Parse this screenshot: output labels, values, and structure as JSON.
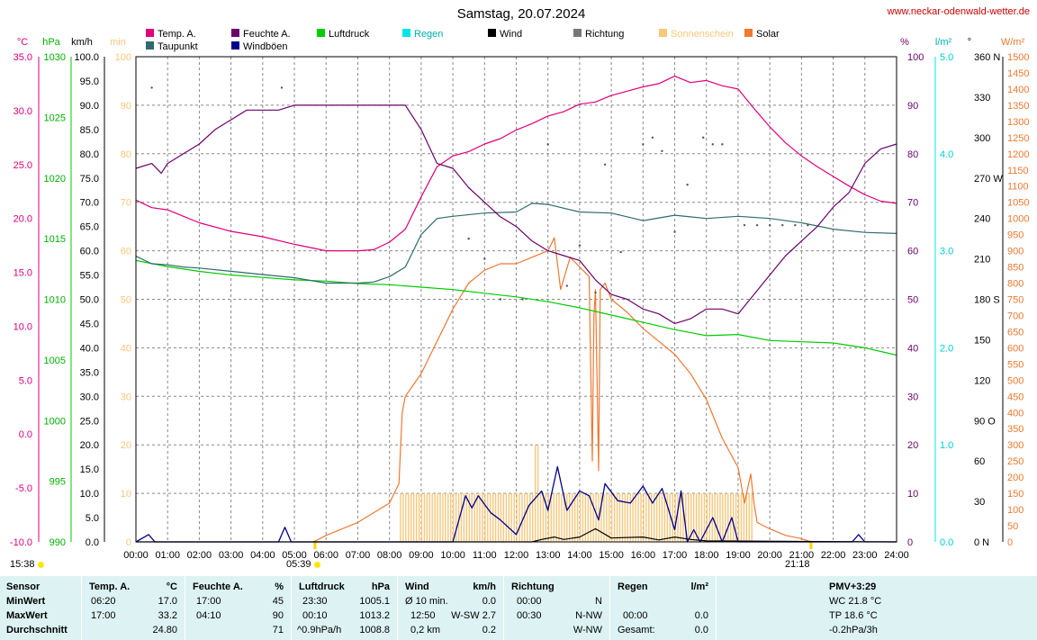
{
  "header": {
    "title": "Samstag, 20.07.2024",
    "source_url": "www.neckar-odenwald-wetter.de"
  },
  "legend": [
    {
      "label": "Temp. A.",
      "color": "#e0007a"
    },
    {
      "label": "Taupunkt",
      "color": "#2f6b6b"
    },
    {
      "label": "Feuchte A.",
      "color": "#6b006b"
    },
    {
      "label": "Windböen",
      "color": "#00008b"
    },
    {
      "label": "Luftdruck",
      "color": "#00cc00"
    },
    {
      "label": "Regen",
      "color": "#00e5e5"
    },
    {
      "label": "Wind",
      "color": "#000000"
    },
    {
      "label": "Richtung",
      "color": "#777777"
    },
    {
      "label": "Sonnenschein",
      "color": "#f7c77a"
    },
    {
      "label": "Solar",
      "color": "#f07830"
    }
  ],
  "axes": {
    "left_units": [
      "°C",
      "hPa",
      "km/h",
      "min"
    ],
    "right_units": [
      "%",
      "l/m²",
      "°",
      "W/m²"
    ],
    "temp_ticks": [
      "35.0",
      "30.0",
      "25.0",
      "20.0",
      "15.0",
      "10.0",
      "5.0",
      "0.0",
      "-5.0",
      "-10.0"
    ],
    "pressure_ticks": [
      "1030",
      "1025",
      "1020",
      "1015",
      "1010",
      "1005",
      "1000",
      "995",
      "990"
    ],
    "kmh_ticks": [
      "100.0",
      "95.0",
      "90.0",
      "85.0",
      "80.0",
      "75.0",
      "70.0",
      "65.0",
      "60.0",
      "55.0",
      "50.0",
      "45.0",
      "40.0",
      "35.0",
      "30.0",
      "25.0",
      "20.0",
      "15.0",
      "10.0",
      "5.0",
      "0.0"
    ],
    "min_ticks": [
      "100",
      "90",
      "80",
      "70",
      "60",
      "50",
      "40",
      "30",
      "20",
      "10",
      "0"
    ],
    "pct_ticks": [
      "100",
      "90",
      "80",
      "70",
      "60",
      "50",
      "40",
      "30",
      "20",
      "10",
      "0"
    ],
    "rain_ticks": [
      "5.0",
      "4.0",
      "3.0",
      "2.0",
      "1.0",
      "0.0"
    ],
    "dir_ticks": [
      "360 N",
      "330",
      "300",
      "270 W",
      "240",
      "210",
      "180 S",
      "150",
      "120",
      "90 O",
      "60",
      "30",
      "0 N"
    ],
    "solar_ticks": [
      "1500",
      "1450",
      "1400",
      "1350",
      "1300",
      "1250",
      "1200",
      "1150",
      "1100",
      "1050",
      "1000",
      "950",
      "900",
      "850",
      "800",
      "750",
      "700",
      "650",
      "600",
      "550",
      "500",
      "450",
      "400",
      "350",
      "300",
      "250",
      "200",
      "150",
      "100",
      "50",
      "0"
    ],
    "time_ticks": [
      "00:00",
      "01:00",
      "02:00",
      "03:00",
      "04:00",
      "05:00",
      "06:00",
      "07:00",
      "08:00",
      "09:00",
      "10:00",
      "11:00",
      "12:00",
      "13:00",
      "14:00",
      "15:00",
      "16:00",
      "17:00",
      "18:00",
      "19:00",
      "20:00",
      "21:00",
      "22:00",
      "23:00",
      "24:00"
    ],
    "sunrise_label": "05:39",
    "sunset_label": "21:18",
    "start_label": "15:38"
  },
  "chart_data": {
    "type": "line",
    "x_unit": "hour",
    "xlim": [
      0,
      24
    ],
    "series": [
      {
        "name": "Temp. A.",
        "unit": "°C",
        "ylim": [
          -10,
          35
        ],
        "x": [
          0,
          0.5,
          1,
          1.5,
          2,
          3,
          4,
          5,
          6,
          7,
          7.5,
          8,
          8.5,
          9,
          9.5,
          10,
          10.5,
          11,
          11.5,
          12,
          12.5,
          13,
          13.5,
          14,
          14.5,
          15,
          15.5,
          16,
          16.5,
          17,
          17.5,
          18,
          18.5,
          19,
          19.5,
          20,
          20.5,
          21,
          21.5,
          22,
          22.5,
          23,
          23.5,
          24
        ],
        "values": [
          21.7,
          21.0,
          20.8,
          20.2,
          19.6,
          18.8,
          18.3,
          17.6,
          17.0,
          17.0,
          17.1,
          17.8,
          19.0,
          22.0,
          24.8,
          25.8,
          26.2,
          26.9,
          27.4,
          28.2,
          28.8,
          29.5,
          29.9,
          30.6,
          30.8,
          31.4,
          31.8,
          32.2,
          32.5,
          33.2,
          32.6,
          32.8,
          32.3,
          32.0,
          30.2,
          28.5,
          27.0,
          25.8,
          24.8,
          23.9,
          23.0,
          22.2,
          21.6,
          21.4
        ]
      },
      {
        "name": "Taupunkt",
        "unit": "°C",
        "ylim": [
          -10,
          35
        ],
        "x": [
          0,
          0.5,
          1,
          1.5,
          2,
          3,
          4,
          5,
          6,
          7,
          7.5,
          8,
          8.5,
          9,
          9.5,
          10,
          11,
          12,
          12.5,
          13,
          14,
          15,
          16,
          17,
          18,
          19,
          20,
          21,
          22,
          23,
          24
        ],
        "values": [
          16.5,
          15.8,
          15.7,
          15.5,
          15.4,
          15.1,
          14.8,
          14.5,
          14.0,
          14.0,
          14.1,
          14.6,
          15.5,
          18.5,
          20.0,
          20.2,
          20.5,
          20.6,
          21.4,
          21.3,
          20.6,
          20.5,
          19.8,
          20.3,
          20.0,
          20.2,
          20.0,
          19.6,
          19.0,
          18.7,
          18.6
        ]
      },
      {
        "name": "Feuchte A.",
        "unit": "%",
        "ylim": [
          0,
          100
        ],
        "x": [
          0,
          0.5,
          0.8,
          1,
          1.5,
          2,
          2.5,
          3,
          3.5,
          4,
          4.5,
          5,
          6,
          7,
          8,
          8.5,
          9,
          9.5,
          10,
          10.5,
          11,
          11.5,
          12,
          12.5,
          13,
          13.5,
          14,
          14.5,
          15,
          15.5,
          16,
          16.5,
          17,
          17.5,
          18,
          18.5,
          19,
          19.5,
          20,
          20.5,
          21,
          21.5,
          22,
          22.5,
          23,
          23.5,
          24
        ],
        "values": [
          77,
          78,
          76,
          78,
          80,
          82,
          85,
          87,
          89,
          89,
          89,
          90,
          90,
          90,
          90,
          90,
          85,
          78,
          77,
          73,
          70,
          67,
          65,
          62,
          60,
          59,
          58,
          54,
          51,
          50,
          48,
          47,
          45,
          46,
          48,
          48,
          47,
          51,
          55,
          59,
          62,
          65,
          69,
          72,
          78,
          81,
          82
        ]
      },
      {
        "name": "Luftdruck",
        "unit": "hPa",
        "ylim": [
          990,
          1030
        ],
        "x": [
          0,
          1,
          2,
          3,
          4,
          5,
          6,
          7,
          8,
          9,
          10,
          11,
          12,
          13,
          14,
          15,
          16,
          17,
          18,
          19,
          20,
          21,
          22,
          23,
          24
        ],
        "values": [
          1013.2,
          1012.7,
          1012.3,
          1012.0,
          1011.8,
          1011.6,
          1011.5,
          1011.3,
          1011.2,
          1011.0,
          1010.8,
          1010.5,
          1010.2,
          1009.8,
          1009.3,
          1008.7,
          1008.1,
          1007.5,
          1007.0,
          1007.1,
          1006.6,
          1006.5,
          1006.4,
          1006.0,
          1005.4
        ]
      },
      {
        "name": "Windböen",
        "unit": "km/h",
        "ylim": [
          0,
          100
        ],
        "x": [
          0,
          0.4,
          0.6,
          4.5,
          4.7,
          4.9,
          10,
          10.4,
          10.6,
          10.8,
          11.2,
          11.5,
          12,
          12.4,
          12.8,
          13.0,
          13.3,
          13.6,
          14,
          14.3,
          14.6,
          14.8,
          15.2,
          15.6,
          16,
          16.3,
          16.6,
          17.0,
          17.2,
          17.4,
          17.6,
          17.8,
          18.2,
          18.5,
          18.8,
          19.0,
          22.6,
          22.8,
          23.0,
          24
        ],
        "values": [
          0,
          1.5,
          0,
          0,
          3,
          0,
          0,
          9.5,
          7,
          9.5,
          6,
          4.5,
          1.5,
          7.5,
          10.5,
          6.5,
          15.5,
          6.5,
          10.5,
          9.5,
          4.5,
          12,
          8.5,
          8,
          11.5,
          8,
          11,
          2.5,
          10.5,
          0,
          2.5,
          0,
          5,
          0,
          5,
          0,
          0,
          1.5,
          0,
          0
        ]
      },
      {
        "name": "Wind",
        "unit": "km/h",
        "ylim": [
          0,
          100
        ],
        "x": [
          0,
          12.5,
          12.8,
          13.2,
          13.5,
          14,
          14.5,
          15,
          16,
          16.5,
          17,
          17.5,
          18,
          24
        ],
        "values": [
          0,
          0,
          0.5,
          1.0,
          0.5,
          1.0,
          2.7,
          0.8,
          1.0,
          0.4,
          1.0,
          0.5,
          0.2,
          0
        ]
      },
      {
        "name": "Solar",
        "unit": "W/m²",
        "ylim": [
          0,
          1500
        ],
        "x": [
          5.6,
          6,
          7,
          8,
          8.3,
          8.4,
          8.5,
          9,
          9.5,
          10,
          10.5,
          11,
          11.5,
          12,
          12.5,
          13,
          13.2,
          13.4,
          13.7,
          14,
          14.3,
          14.4,
          14.45,
          14.5,
          14.6,
          14.65,
          14.8,
          15,
          15.5,
          16,
          16.5,
          17,
          17.5,
          18,
          18.5,
          19,
          19.2,
          19.4,
          19.5,
          19.6,
          20,
          20.5,
          21,
          21.3
        ],
        "values": [
          0,
          20,
          60,
          120,
          180,
          400,
          450,
          520,
          620,
          720,
          800,
          840,
          860,
          860,
          880,
          900,
          940,
          780,
          880,
          850,
          820,
          250,
          700,
          780,
          220,
          780,
          800,
          750,
          710,
          660,
          620,
          580,
          520,
          440,
          320,
          230,
          120,
          210,
          120,
          60,
          40,
          20,
          10,
          0
        ]
      },
      {
        "name": "Sonnenschein",
        "unit": "min",
        "ylim": [
          0,
          100
        ],
        "x": [
          8.35,
          12.6,
          12.7,
          19.5
        ],
        "values": [
          10,
          10,
          20,
          10
        ]
      },
      {
        "name": "Richtung",
        "unit": "°",
        "ylim": [
          0,
          360
        ],
        "x": [
          0.5,
          4.6,
          10.5,
          11,
          11.5,
          12.2,
          13,
          13.6,
          14,
          14.5,
          14.8,
          15.3,
          16,
          16.3,
          16.6,
          17.0,
          17.4,
          17.9,
          18.2,
          18.5,
          19.2,
          19.6,
          20.0,
          20.4,
          20.8,
          21.2
        ],
        "values": [
          337,
          337,
          225,
          210,
          180,
          180,
          295,
          190,
          220,
          185,
          280,
          215,
          295,
          300,
          290,
          230,
          265,
          300,
          295,
          295,
          235,
          235,
          235,
          235,
          235,
          235
        ]
      }
    ]
  },
  "summary": {
    "sensor": {
      "header": "Sensor",
      "rows": [
        "MinWert",
        "MaxWert",
        "Durchschnitt"
      ]
    },
    "temp": {
      "header": "Temp. A.",
      "unit": "°C",
      "min_time": "06:20",
      "min_val": "17.0",
      "max_time": "17:00",
      "max_val": "33.2",
      "avg_val": "24.80"
    },
    "hum": {
      "header": "Feuchte A.",
      "unit": "%",
      "min_time": "17:00",
      "min_val": "45",
      "max_time": "04:10",
      "max_val": "90",
      "avg_val": "71"
    },
    "press": {
      "header": "Luftdruck",
      "unit": "hPa",
      "min_time": "23:30",
      "min_val": "1005.1",
      "max_time": "00:10",
      "max_val": "1013.2",
      "trend": "^0.9hPa/h",
      "avg_val": "1008.8"
    },
    "wind": {
      "header": "Wind",
      "unit": "km/h",
      "r1a": "Ø 10 min.",
      "r1b": "0.0",
      "r2a": "12:50",
      "r2b": "W-SW 2.7",
      "r3a": "0,2 km",
      "r3b": "0.2"
    },
    "dir": {
      "header": "Richtung",
      "r1a": "00:00",
      "r1b": "N",
      "r2a": "00:30",
      "r2b": "N-NW",
      "r3b": "W-NW"
    },
    "rain": {
      "header": "Regen",
      "unit": "l/m²",
      "r2a": "00:00",
      "r2b": "0.0",
      "r3a": "Gesamt:",
      "r3b": "0.0"
    },
    "pmv": {
      "header": "PMV+3:29",
      "r1": "WC 21.8 °C",
      "r2": "TP 18.6 °C",
      "r3": "-0.2hPa/3h"
    }
  }
}
